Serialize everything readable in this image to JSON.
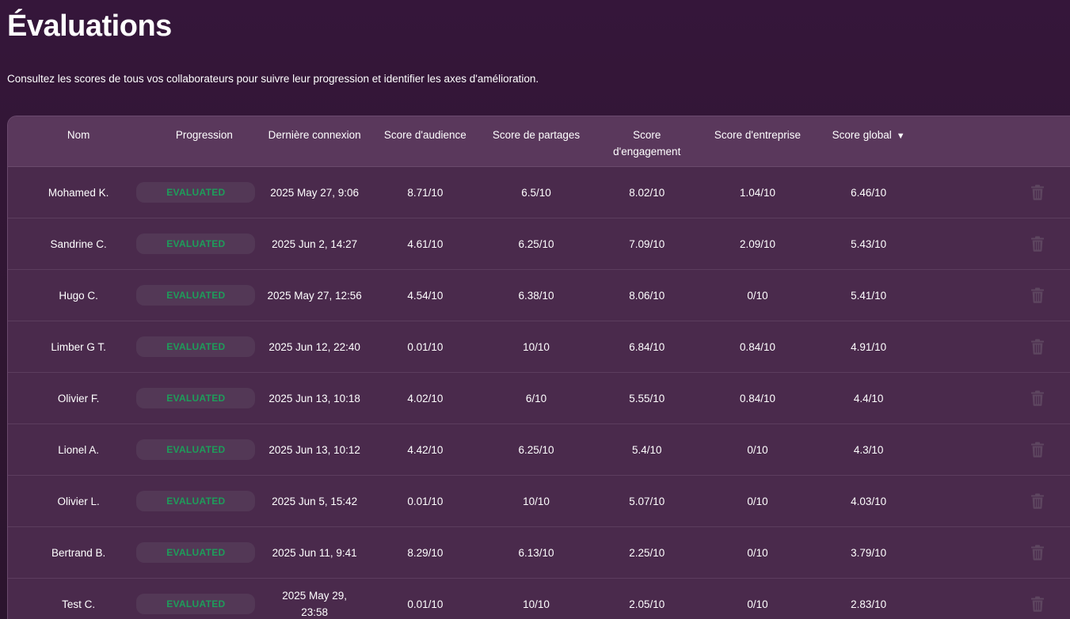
{
  "header": {
    "title": "Évaluations",
    "subtitle": "Consultez les scores de tous vos collaborateurs pour suivre leur progression et identifier les axes d'amélioration."
  },
  "table": {
    "columns": {
      "name": "Nom",
      "progress": "Progression",
      "last_login": "Dernière connexion",
      "audience": "Score d'audience",
      "shares": "Score de partages",
      "engagement_line1": "Score",
      "engagement_line2": "d'engagement",
      "enterprise": "Score d'entreprise",
      "global": "Score global",
      "sort_indicator": "▼"
    },
    "rows": [
      {
        "name": "Mohamed K.",
        "status": "EVALUATED",
        "last_login": "2025 May 27, 9:06",
        "audience": "8.71/10",
        "shares": "6.5/10",
        "engagement": "8.02/10",
        "enterprise": "1.04/10",
        "global": "6.46/10"
      },
      {
        "name": "Sandrine C.",
        "status": "EVALUATED",
        "last_login": "2025 Jun 2, 14:27",
        "audience": "4.61/10",
        "shares": "6.25/10",
        "engagement": "7.09/10",
        "enterprise": "2.09/10",
        "global": "5.43/10"
      },
      {
        "name": "Hugo C.",
        "status": "EVALUATED",
        "last_login": "2025 May 27, 12:56",
        "audience": "4.54/10",
        "shares": "6.38/10",
        "engagement": "8.06/10",
        "enterprise": "0/10",
        "global": "5.41/10"
      },
      {
        "name": "Limber G T.",
        "status": "EVALUATED",
        "last_login": "2025 Jun 12, 22:40",
        "audience": "0.01/10",
        "shares": "10/10",
        "engagement": "6.84/10",
        "enterprise": "0.84/10",
        "global": "4.91/10"
      },
      {
        "name": "Olivier F.",
        "status": "EVALUATED",
        "last_login": "2025 Jun 13, 10:18",
        "audience": "4.02/10",
        "shares": "6/10",
        "engagement": "5.55/10",
        "enterprise": "0.84/10",
        "global": "4.4/10"
      },
      {
        "name": "Lionel A.",
        "status": "EVALUATED",
        "last_login": "2025 Jun 13, 10:12",
        "audience": "4.42/10",
        "shares": "6.25/10",
        "engagement": "5.4/10",
        "enterprise": "0/10",
        "global": "4.3/10"
      },
      {
        "name": "Olivier L.",
        "status": "EVALUATED",
        "last_login": "2025 Jun 5, 15:42",
        "audience": "0.01/10",
        "shares": "10/10",
        "engagement": "5.07/10",
        "enterprise": "0/10",
        "global": "4.03/10"
      },
      {
        "name": "Bertrand B.",
        "status": "EVALUATED",
        "last_login": "2025 Jun 11, 9:41",
        "audience": "8.29/10",
        "shares": "6.13/10",
        "engagement": "2.25/10",
        "enterprise": "0/10",
        "global": "3.79/10"
      },
      {
        "name": "Test C.",
        "status": "EVALUATED",
        "last_login_line1": "2025 May 29,",
        "last_login_line2": "23:58",
        "audience": "0.01/10",
        "shares": "10/10",
        "engagement": "2.05/10",
        "enterprise": "0/10",
        "global": "2.83/10"
      }
    ]
  },
  "icons": {
    "delete": "trash-icon"
  },
  "colors": {
    "background": "#2e1530",
    "table_bg": "#4a2a4c",
    "header_bg": "#5a385c",
    "status_text": "#1e9d5a",
    "status_bg": "#533856"
  }
}
